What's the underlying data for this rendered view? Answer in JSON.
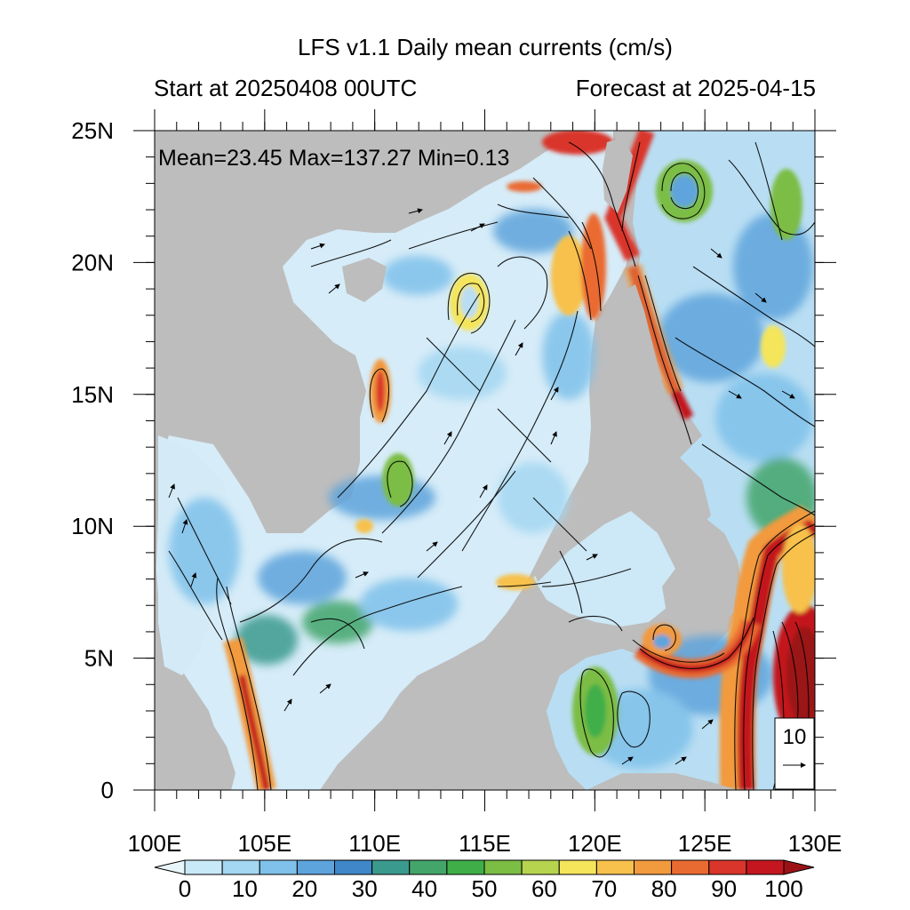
{
  "header": {
    "title": "LFS v1.1 Daily mean currents (cm/s)",
    "start_text": "Start at 20250408 00UTC",
    "forecast_text": "Forecast at 2025-04-15"
  },
  "stats": {
    "text": "Mean=23.45  Max=137.27  Min=0.13"
  },
  "map": {
    "lon_range": [
      100,
      130
    ],
    "lat_range": [
      0,
      25
    ],
    "lon_ticks": [
      "100E",
      "105E",
      "110E",
      "115E",
      "120E",
      "125E",
      "130E"
    ],
    "lat_ticks": [
      "0",
      "5N",
      "10N",
      "15N",
      "20N",
      "25N"
    ],
    "land_color": "#bdbdbd",
    "ocean_base_color": "#d6ecf8"
  },
  "colorbar": {
    "labels": [
      "0",
      "10",
      "20",
      "30",
      "40",
      "50",
      "60",
      "70",
      "80",
      "90",
      "100"
    ],
    "colors": [
      "#e8f6fc",
      "#c8e9f7",
      "#a4d7f2",
      "#7fc1ea",
      "#5ea4dc",
      "#3f87c8",
      "#3b9a8e",
      "#43a56a",
      "#3fae49",
      "#7cbd44",
      "#b7d44f",
      "#f4e55a",
      "#f7c14c",
      "#f29a3e",
      "#ea6b32",
      "#d9352a",
      "#c3161f",
      "#9b1216"
    ]
  },
  "reference_vector": {
    "label": "10"
  }
}
